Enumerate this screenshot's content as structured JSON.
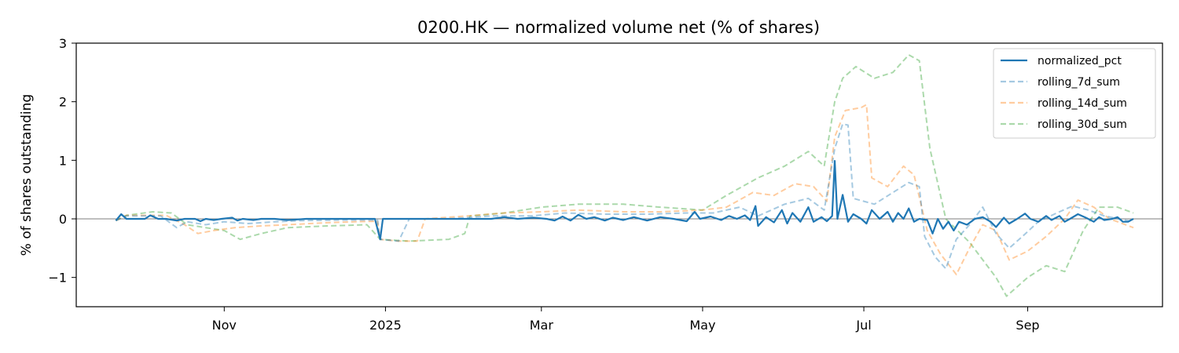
{
  "chart_data": {
    "type": "line",
    "title": "0200.HK — normalized volume net (% of shares)",
    "xlabel": "",
    "ylabel": "% of shares outstanding",
    "x_tick_labels": [
      "Nov",
      "2025",
      "Mar",
      "May",
      "Jul",
      "Sep"
    ],
    "x_ticks": [
      "2024-11-01",
      "2025-01-01",
      "2025-03-01",
      "2025-05-01",
      "2025-07-01",
      "2025-09-01"
    ],
    "y_tick_labels": [
      "−1",
      "0",
      "1",
      "2",
      "3"
    ],
    "y_ticks": [
      -1,
      0,
      1,
      2,
      3
    ],
    "xlim": [
      "2024-09-06",
      "2025-10-22"
    ],
    "ylim": [
      -1.5,
      3
    ],
    "zero_line": true,
    "grid": false,
    "legend_position": "upper right",
    "series": [
      {
        "name": "normalized_pct",
        "style": "solid",
        "color": "#1f77b4",
        "points": [
          [
            "2024-09-21",
            -0.03
          ],
          [
            "2024-09-23",
            0.08
          ],
          [
            "2024-09-25",
            0.0
          ],
          [
            "2024-09-30",
            0.0
          ],
          [
            "2024-10-02",
            0.0
          ],
          [
            "2024-10-04",
            0.06
          ],
          [
            "2024-10-07",
            0.0
          ],
          [
            "2024-10-10",
            0.0
          ],
          [
            "2024-10-14",
            -0.03
          ],
          [
            "2024-10-17",
            0.0
          ],
          [
            "2024-10-21",
            0.0
          ],
          [
            "2024-10-23",
            -0.04
          ],
          [
            "2024-10-25",
            0.0
          ],
          [
            "2024-10-28",
            -0.02
          ],
          [
            "2024-10-31",
            0.0
          ],
          [
            "2024-11-04",
            0.02
          ],
          [
            "2024-11-06",
            -0.03
          ],
          [
            "2024-11-08",
            0.0
          ],
          [
            "2024-11-12",
            -0.02
          ],
          [
            "2024-11-15",
            0.0
          ],
          [
            "2024-11-20",
            0.0
          ],
          [
            "2024-11-25",
            -0.02
          ],
          [
            "2024-12-02",
            0.0
          ],
          [
            "2024-12-09",
            0.0
          ],
          [
            "2024-12-16",
            0.0
          ],
          [
            "2024-12-23",
            0.0
          ],
          [
            "2024-12-28",
            0.0
          ],
          [
            "2024-12-30",
            -0.35
          ],
          [
            "2024-12-31",
            0.0
          ],
          [
            "2025-01-03",
            0.0
          ],
          [
            "2025-01-10",
            0.0
          ],
          [
            "2025-01-20",
            0.0
          ],
          [
            "2025-02-01",
            0.0
          ],
          [
            "2025-02-10",
            0.0
          ],
          [
            "2025-02-15",
            0.03
          ],
          [
            "2025-02-20",
            0.0
          ],
          [
            "2025-02-26",
            0.02
          ],
          [
            "2025-03-03",
            0.0
          ],
          [
            "2025-03-06",
            -0.03
          ],
          [
            "2025-03-09",
            0.04
          ],
          [
            "2025-03-12",
            -0.03
          ],
          [
            "2025-03-15",
            0.07
          ],
          [
            "2025-03-18",
            0.0
          ],
          [
            "2025-03-21",
            0.03
          ],
          [
            "2025-03-25",
            -0.03
          ],
          [
            "2025-03-28",
            0.02
          ],
          [
            "2025-04-01",
            -0.02
          ],
          [
            "2025-04-05",
            0.03
          ],
          [
            "2025-04-10",
            -0.03
          ],
          [
            "2025-04-15",
            0.03
          ],
          [
            "2025-04-20",
            0.0
          ],
          [
            "2025-04-25",
            -0.04
          ],
          [
            "2025-04-28",
            0.12
          ],
          [
            "2025-04-30",
            0.0
          ],
          [
            "2025-05-04",
            0.04
          ],
          [
            "2025-05-08",
            -0.02
          ],
          [
            "2025-05-11",
            0.05
          ],
          [
            "2025-05-14",
            0.0
          ],
          [
            "2025-05-17",
            0.06
          ],
          [
            "2025-05-19",
            -0.02
          ],
          [
            "2025-05-21",
            0.22
          ],
          [
            "2025-05-22",
            -0.12
          ],
          [
            "2025-05-25",
            0.03
          ],
          [
            "2025-05-28",
            -0.06
          ],
          [
            "2025-05-31",
            0.15
          ],
          [
            "2025-06-02",
            -0.08
          ],
          [
            "2025-06-04",
            0.1
          ],
          [
            "2025-06-07",
            -0.05
          ],
          [
            "2025-06-10",
            0.2
          ],
          [
            "2025-06-12",
            -0.05
          ],
          [
            "2025-06-15",
            0.03
          ],
          [
            "2025-06-17",
            -0.04
          ],
          [
            "2025-06-19",
            0.05
          ],
          [
            "2025-06-20",
            0.99
          ],
          [
            "2025-06-21",
            0.0
          ],
          [
            "2025-06-23",
            0.41
          ],
          [
            "2025-06-25",
            -0.05
          ],
          [
            "2025-06-27",
            0.08
          ],
          [
            "2025-06-30",
            0.0
          ],
          [
            "2025-07-02",
            -0.08
          ],
          [
            "2025-07-04",
            0.15
          ],
          [
            "2025-07-07",
            0.0
          ],
          [
            "2025-07-10",
            0.12
          ],
          [
            "2025-07-12",
            -0.05
          ],
          [
            "2025-07-14",
            0.1
          ],
          [
            "2025-07-16",
            0.0
          ],
          [
            "2025-07-18",
            0.18
          ],
          [
            "2025-07-20",
            -0.05
          ],
          [
            "2025-07-22",
            0.0
          ],
          [
            "2025-07-25",
            -0.02
          ],
          [
            "2025-07-27",
            -0.25
          ],
          [
            "2025-07-29",
            0.0
          ],
          [
            "2025-07-31",
            -0.17
          ],
          [
            "2025-08-02",
            -0.05
          ],
          [
            "2025-08-04",
            -0.2
          ],
          [
            "2025-08-06",
            -0.05
          ],
          [
            "2025-08-09",
            -0.1
          ],
          [
            "2025-08-12",
            0.0
          ],
          [
            "2025-08-15",
            0.03
          ],
          [
            "2025-08-18",
            -0.05
          ],
          [
            "2025-08-20",
            -0.14
          ],
          [
            "2025-08-23",
            0.02
          ],
          [
            "2025-08-25",
            -0.08
          ],
          [
            "2025-08-28",
            0.0
          ],
          [
            "2025-08-31",
            0.09
          ],
          [
            "2025-09-02",
            0.0
          ],
          [
            "2025-09-05",
            -0.05
          ],
          [
            "2025-09-08",
            0.05
          ],
          [
            "2025-09-10",
            -0.02
          ],
          [
            "2025-09-13",
            0.05
          ],
          [
            "2025-09-15",
            -0.05
          ],
          [
            "2025-09-17",
            0.0
          ],
          [
            "2025-09-20",
            0.08
          ],
          [
            "2025-09-23",
            0.02
          ],
          [
            "2025-09-26",
            -0.05
          ],
          [
            "2025-09-28",
            0.03
          ],
          [
            "2025-09-30",
            -0.02
          ],
          [
            "2025-10-03",
            0.0
          ],
          [
            "2025-10-05",
            0.03
          ],
          [
            "2025-10-07",
            -0.05
          ],
          [
            "2025-10-09",
            -0.05
          ],
          [
            "2025-10-11",
            0.0
          ]
        ]
      },
      {
        "name": "rolling_7d_sum",
        "style": "dashed",
        "color": "#1f77b4",
        "points": [
          [
            "2024-09-21",
            -0.03
          ],
          [
            "2024-09-25",
            0.05
          ],
          [
            "2024-10-02",
            0.05
          ],
          [
            "2024-10-08",
            0.05
          ],
          [
            "2024-10-14",
            -0.15
          ],
          [
            "2024-10-18",
            -0.05
          ],
          [
            "2024-10-25",
            -0.1
          ],
          [
            "2024-11-01",
            -0.05
          ],
          [
            "2024-11-10",
            -0.08
          ],
          [
            "2024-11-20",
            -0.05
          ],
          [
            "2024-12-01",
            -0.03
          ],
          [
            "2024-12-15",
            -0.02
          ],
          [
            "2024-12-29",
            -0.02
          ],
          [
            "2024-12-30",
            -0.35
          ],
          [
            "2025-01-06",
            -0.38
          ],
          [
            "2025-01-10",
            0.0
          ],
          [
            "2025-01-25",
            0.0
          ],
          [
            "2025-02-10",
            0.05
          ],
          [
            "2025-02-25",
            0.05
          ],
          [
            "2025-03-10",
            0.1
          ],
          [
            "2025-03-25",
            0.08
          ],
          [
            "2025-04-10",
            0.08
          ],
          [
            "2025-04-25",
            0.1
          ],
          [
            "2025-05-05",
            0.1
          ],
          [
            "2025-05-15",
            0.2
          ],
          [
            "2025-05-22",
            0.05
          ],
          [
            "2025-06-01",
            0.25
          ],
          [
            "2025-06-10",
            0.35
          ],
          [
            "2025-06-16",
            0.15
          ],
          [
            "2025-06-20",
            1.2
          ],
          [
            "2025-06-23",
            1.62
          ],
          [
            "2025-06-25",
            1.6
          ],
          [
            "2025-06-27",
            0.35
          ],
          [
            "2025-07-05",
            0.25
          ],
          [
            "2025-07-12",
            0.45
          ],
          [
            "2025-07-18",
            0.62
          ],
          [
            "2025-07-22",
            0.55
          ],
          [
            "2025-07-24",
            -0.3
          ],
          [
            "2025-07-28",
            -0.65
          ],
          [
            "2025-08-01",
            -0.85
          ],
          [
            "2025-08-05",
            -0.35
          ],
          [
            "2025-08-10",
            -0.1
          ],
          [
            "2025-08-15",
            0.2
          ],
          [
            "2025-08-20",
            -0.25
          ],
          [
            "2025-08-25",
            -0.5
          ],
          [
            "2025-08-30",
            -0.3
          ],
          [
            "2025-09-05",
            -0.05
          ],
          [
            "2025-09-12",
            0.1
          ],
          [
            "2025-09-18",
            0.22
          ],
          [
            "2025-09-24",
            0.15
          ],
          [
            "2025-09-30",
            0.05
          ],
          [
            "2025-10-11",
            -0.05
          ]
        ]
      },
      {
        "name": "rolling_14d_sum",
        "style": "dashed",
        "color": "#ff7f0e",
        "points": [
          [
            "2024-09-21",
            -0.03
          ],
          [
            "2024-09-25",
            0.06
          ],
          [
            "2024-10-02",
            0.06
          ],
          [
            "2024-10-10",
            0.06
          ],
          [
            "2024-10-17",
            -0.1
          ],
          [
            "2024-10-22",
            -0.25
          ],
          [
            "2024-10-28",
            -0.2
          ],
          [
            "2024-11-05",
            -0.15
          ],
          [
            "2024-11-15",
            -0.12
          ],
          [
            "2024-11-25",
            -0.1
          ],
          [
            "2024-12-08",
            -0.07
          ],
          [
            "2024-12-20",
            -0.05
          ],
          [
            "2024-12-29",
            -0.04
          ],
          [
            "2024-12-30",
            -0.35
          ],
          [
            "2025-01-06",
            -0.38
          ],
          [
            "2025-01-13",
            -0.38
          ],
          [
            "2025-01-16",
            0.0
          ],
          [
            "2025-02-01",
            0.05
          ],
          [
            "2025-02-15",
            0.1
          ],
          [
            "2025-03-01",
            0.12
          ],
          [
            "2025-03-15",
            0.15
          ],
          [
            "2025-04-01",
            0.12
          ],
          [
            "2025-04-15",
            0.12
          ],
          [
            "2025-05-01",
            0.15
          ],
          [
            "2025-05-10",
            0.2
          ],
          [
            "2025-05-20",
            0.45
          ],
          [
            "2025-05-28",
            0.4
          ],
          [
            "2025-06-05",
            0.6
          ],
          [
            "2025-06-12",
            0.55
          ],
          [
            "2025-06-17",
            0.3
          ],
          [
            "2025-06-20",
            1.4
          ],
          [
            "2025-06-24",
            1.85
          ],
          [
            "2025-06-30",
            1.9
          ],
          [
            "2025-07-02",
            1.95
          ],
          [
            "2025-07-04",
            0.7
          ],
          [
            "2025-07-10",
            0.55
          ],
          [
            "2025-07-16",
            0.9
          ],
          [
            "2025-07-20",
            0.75
          ],
          [
            "2025-07-25",
            -0.2
          ],
          [
            "2025-07-30",
            -0.6
          ],
          [
            "2025-08-05",
            -0.95
          ],
          [
            "2025-08-10",
            -0.5
          ],
          [
            "2025-08-15",
            -0.1
          ],
          [
            "2025-08-20",
            -0.2
          ],
          [
            "2025-08-25",
            -0.7
          ],
          [
            "2025-09-01",
            -0.55
          ],
          [
            "2025-09-08",
            -0.3
          ],
          [
            "2025-09-15",
            0.0
          ],
          [
            "2025-09-20",
            0.32
          ],
          [
            "2025-09-26",
            0.2
          ],
          [
            "2025-10-02",
            0.0
          ],
          [
            "2025-10-11",
            -0.15
          ]
        ]
      },
      {
        "name": "rolling_30d_sum",
        "style": "dashed",
        "color": "#2ca02c",
        "points": [
          [
            "2024-09-21",
            -0.03
          ],
          [
            "2024-09-25",
            0.06
          ],
          [
            "2024-10-05",
            0.12
          ],
          [
            "2024-10-12",
            0.1
          ],
          [
            "2024-10-18",
            -0.1
          ],
          [
            "2024-10-25",
            -0.15
          ],
          [
            "2024-11-01",
            -0.2
          ],
          [
            "2024-11-07",
            -0.35
          ],
          [
            "2024-11-15",
            -0.25
          ],
          [
            "2024-11-25",
            -0.15
          ],
          [
            "2024-12-10",
            -0.12
          ],
          [
            "2024-12-25",
            -0.1
          ],
          [
            "2024-12-30",
            -0.35
          ],
          [
            "2025-01-10",
            -0.38
          ],
          [
            "2025-01-25",
            -0.35
          ],
          [
            "2025-01-31",
            -0.25
          ],
          [
            "2025-02-02",
            0.05
          ],
          [
            "2025-02-15",
            0.1
          ],
          [
            "2025-03-01",
            0.2
          ],
          [
            "2025-03-15",
            0.25
          ],
          [
            "2025-04-01",
            0.25
          ],
          [
            "2025-04-15",
            0.2
          ],
          [
            "2025-05-01",
            0.15
          ],
          [
            "2025-05-10",
            0.4
          ],
          [
            "2025-05-22",
            0.7
          ],
          [
            "2025-06-01",
            0.9
          ],
          [
            "2025-06-10",
            1.15
          ],
          [
            "2025-06-16",
            0.9
          ],
          [
            "2025-06-20",
            2.0
          ],
          [
            "2025-06-23",
            2.4
          ],
          [
            "2025-06-28",
            2.6
          ],
          [
            "2025-07-05",
            2.4
          ],
          [
            "2025-07-12",
            2.5
          ],
          [
            "2025-07-18",
            2.8
          ],
          [
            "2025-07-22",
            2.7
          ],
          [
            "2025-07-26",
            1.2
          ],
          [
            "2025-08-01",
            0.0
          ],
          [
            "2025-08-10",
            -0.4
          ],
          [
            "2025-08-20",
            -1.0
          ],
          [
            "2025-08-24",
            -1.32
          ],
          [
            "2025-09-01",
            -1.0
          ],
          [
            "2025-09-08",
            -0.8
          ],
          [
            "2025-09-15",
            -0.9
          ],
          [
            "2025-09-22",
            -0.2
          ],
          [
            "2025-09-28",
            0.2
          ],
          [
            "2025-10-05",
            0.2
          ],
          [
            "2025-10-11",
            0.1
          ]
        ]
      }
    ]
  }
}
